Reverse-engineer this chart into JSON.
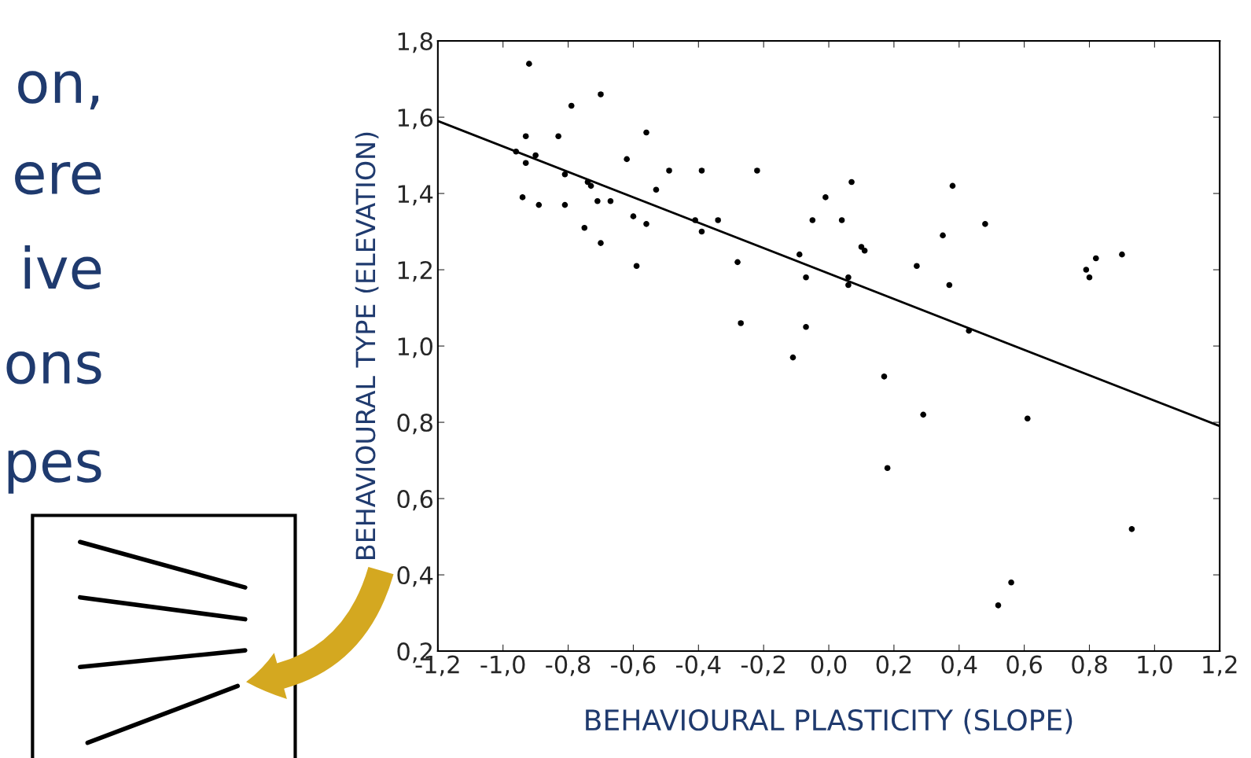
{
  "chart_data": {
    "type": "scatter",
    "xlabel": "BEHAVIOURAL PLASTICITY (SLOPE)",
    "ylabel": "BEHAVIOURAL TYPE (ELEVATION)",
    "annotations": [
      "on,",
      "ere",
      "ive",
      "ons",
      "pes"
    ],
    "series": [
      {
        "color": "#000000",
        "marker": "circle",
        "x": [
          -0.96,
          -0.93,
          -0.92,
          -0.93,
          -0.9,
          -0.94,
          -0.89,
          -0.83,
          -0.79,
          -0.81,
          -0.81,
          -0.75,
          -0.74,
          -0.73,
          -0.71,
          -0.7,
          -0.7,
          -0.67,
          -0.62,
          -0.6,
          -0.59,
          -0.56,
          -0.56,
          -0.53,
          -0.49,
          -0.41,
          -0.39,
          -0.39,
          -0.34,
          -0.28,
          -0.27,
          -0.22,
          -0.11,
          -0.09,
          -0.07,
          -0.07,
          -0.05,
          -0.01,
          0.04,
          0.06,
          0.06,
          0.07,
          0.1,
          0.11,
          0.17,
          0.18,
          0.27,
          0.29,
          0.35,
          0.37,
          0.38,
          0.43,
          0.48,
          0.52,
          0.56,
          0.61,
          0.79,
          0.8,
          0.82,
          0.9,
          0.93
        ],
        "values": [
          1.51,
          1.55,
          1.74,
          1.48,
          1.5,
          1.39,
          1.37,
          1.55,
          1.63,
          1.45,
          1.37,
          1.31,
          1.43,
          1.42,
          1.38,
          1.66,
          1.27,
          1.38,
          1.49,
          1.34,
          1.21,
          1.56,
          1.32,
          1.41,
          1.46,
          1.33,
          1.46,
          1.3,
          1.33,
          1.22,
          1.06,
          1.46,
          0.97,
          1.24,
          1.18,
          1.05,
          1.33,
          1.39,
          1.33,
          1.16,
          1.18,
          1.43,
          1.26,
          1.25,
          0.92,
          0.68,
          1.21,
          0.82,
          1.29,
          1.16,
          1.42,
          1.04,
          1.32,
          0.32,
          0.38,
          0.81,
          1.2,
          1.18,
          1.23,
          1.24,
          0.52
        ]
      },
      {
        "type": "line",
        "color": "#000000",
        "x": [
          -1.2,
          1.2
        ],
        "values": [
          1.59,
          0.79
        ]
      }
    ],
    "xlim": [
      -1.2,
      1.2
    ],
    "xticks": [
      {
        "value": -1.2,
        "label": "-1,2"
      },
      {
        "value": -1.0,
        "label": "-1,0"
      },
      {
        "value": -0.8,
        "label": "-0,8"
      },
      {
        "value": -0.6,
        "label": "-0,6"
      },
      {
        "value": -0.4,
        "label": "-0,4"
      },
      {
        "value": -0.2,
        "label": "-0,2"
      },
      {
        "value": 0.0,
        "label": "0,0"
      },
      {
        "value": 0.2,
        "label": "0,2"
      },
      {
        "value": 0.4,
        "label": "0,4"
      },
      {
        "value": 0.6,
        "label": "0,6"
      },
      {
        "value": 0.8,
        "label": "0,8"
      },
      {
        "value": 1.0,
        "label": "1,0"
      },
      {
        "value": 1.2,
        "label": "1,2"
      }
    ],
    "ylim": [
      0.2,
      1.8
    ],
    "yticks": [
      {
        "value": 0.2,
        "label": "0,2"
      },
      {
        "value": 0.4,
        "label": "0,4"
      },
      {
        "value": 0.6,
        "label": "0,6"
      },
      {
        "value": 0.8,
        "label": "0,8"
      },
      {
        "value": 1.0,
        "label": "1,0"
      },
      {
        "value": 1.2,
        "label": "1,2"
      },
      {
        "value": 1.4,
        "label": "1,4"
      },
      {
        "value": 1.6,
        "label": "1,6"
      },
      {
        "value": 1.8,
        "label": "1,8"
      }
    ],
    "grid": false,
    "legend": false
  }
}
